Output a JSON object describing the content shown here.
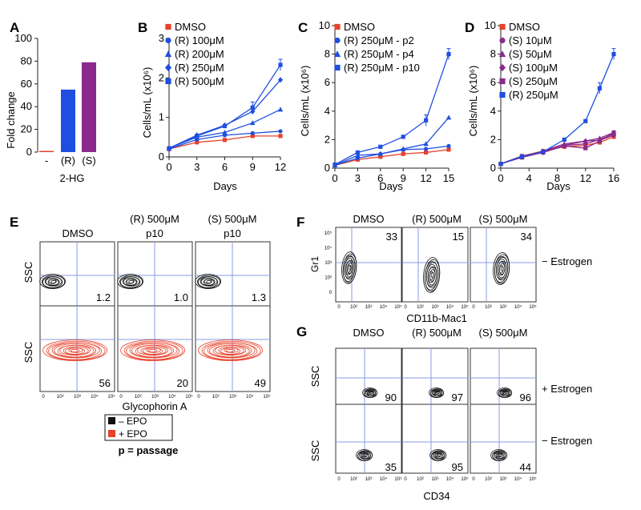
{
  "panels": {
    "A": {
      "label": "A",
      "ylabel": "Fold change",
      "xlabel": "2-HG",
      "yticks": [
        "0",
        "20",
        "40",
        "60",
        "80",
        "100"
      ],
      "categories": [
        "-",
        "(R)",
        "(S)"
      ]
    },
    "B": {
      "label": "B",
      "ylabel": "Cells/mL (x10⁶)",
      "xlabel": "Days",
      "xticks": [
        "0",
        "3",
        "6",
        "9",
        "12"
      ],
      "yticks": [
        "0",
        "1",
        "2",
        "3"
      ],
      "legend": [
        "DMSO",
        "(R) 100μM",
        "(R) 200μM",
        "(R) 250μM",
        "(R) 500μM"
      ]
    },
    "C": {
      "label": "C",
      "ylabel": "Cells/mL (x10⁶)",
      "xlabel": "Days",
      "xticks": [
        "0",
        "3",
        "6",
        "9",
        "12",
        "15"
      ],
      "yticks": [
        "0",
        "2",
        "4",
        "6",
        "8",
        "10"
      ],
      "legend": [
        "DMSO",
        "(R) 250μM - p2",
        "(R) 250μM - p4",
        "(R) 250μM - p10"
      ]
    },
    "D": {
      "label": "D",
      "ylabel": "Cells/mL (x10⁶)",
      "xlabel": "Days",
      "xticks": [
        "0",
        "4",
        "8",
        "12",
        "16"
      ],
      "yticks": [
        "0",
        "2",
        "4",
        "6",
        "8",
        "10"
      ],
      "legend": [
        "DMSO",
        "(S) 10μM",
        "(S) 50μM",
        "(S) 100μM",
        "(S) 250μM",
        "(R) 250μM"
      ]
    },
    "E": {
      "label": "E",
      "col_titles": [
        "DMSO",
        "(R) 500μM",
        "(S) 500μM"
      ],
      "col_subtitles": [
        "",
        "p10",
        "p10"
      ],
      "ylabel": "SSC",
      "xlabel": "Glycophorin A",
      "minus_epo_values": [
        "1.2",
        "1.0",
        "1.3"
      ],
      "plus_epo_values": [
        "56",
        "20",
        "49"
      ],
      "legend": [
        "– EPO",
        "+ EPO"
      ],
      "note": "p = passage"
    },
    "F": {
      "label": "F",
      "col_titles": [
        "DMSO",
        "(R) 500μM",
        "(S) 500μM"
      ],
      "ylabel": "Gr1",
      "xlabel": "CD11b-Mac1",
      "values": [
        "33",
        "15",
        "34"
      ],
      "row_label": "− Estrogen"
    },
    "G": {
      "label": "G",
      "col_titles": [
        "DMSO",
        "(R) 500μM",
        "(S) 500μM"
      ],
      "ylabel": "SSC",
      "xlabel": "CD34",
      "plus_values": [
        "90",
        "97",
        "96"
      ],
      "minus_values": [
        "35",
        "95",
        "44"
      ],
      "row_labels": [
        "+ Estrogen",
        "− Estrogen"
      ]
    }
  },
  "flow_axis_ticks": [
    "0",
    "10²",
    "10³",
    "10⁴",
    "10⁵"
  ],
  "colors": {
    "red": "#e8412a",
    "blue": "#1f4fe0",
    "purple": "#8a2a8c",
    "black": "#111111",
    "gate": "#8a9be8"
  },
  "chart_data": [
    {
      "type": "bar",
      "title": "",
      "xlabel": "2-HG",
      "ylabel": "Fold change",
      "ylim": [
        0,
        100
      ],
      "categories": [
        "-",
        "(R)",
        "(S)"
      ],
      "values": [
        1,
        55,
        79
      ],
      "colors": [
        "#e8412a",
        "#1f4fe0",
        "#8a2a8c"
      ]
    },
    {
      "type": "line",
      "xlabel": "Days",
      "ylabel": "Cells/mL (x10⁶)",
      "xlim": [
        0,
        12
      ],
      "ylim": [
        0,
        3
      ],
      "x": [
        0,
        3,
        6,
        9,
        12
      ],
      "series": [
        {
          "name": "DMSO",
          "marker": "square",
          "color": "#e8412a",
          "values": [
            0.2,
            0.37,
            0.43,
            0.53,
            0.53
          ]
        },
        {
          "name": "(R) 100μM",
          "marker": "circle",
          "color": "#1f4fe0",
          "values": [
            0.2,
            0.44,
            0.55,
            0.6,
            0.65
          ]
        },
        {
          "name": "(R) 200μM",
          "marker": "triangle",
          "color": "#1f4fe0",
          "values": [
            0.22,
            0.5,
            0.62,
            0.86,
            1.2
          ]
        },
        {
          "name": "(R) 250μM",
          "marker": "diamond",
          "color": "#1f4fe0",
          "values": [
            0.22,
            0.55,
            0.8,
            1.15,
            1.95
          ]
        },
        {
          "name": "(R) 500μM",
          "marker": "square",
          "color": "#1f4fe0",
          "values": [
            0.22,
            0.53,
            0.78,
            1.25,
            2.33
          ]
        }
      ]
    },
    {
      "type": "line",
      "xlabel": "Days",
      "ylabel": "Cells/mL (x10⁶)",
      "xlim": [
        0,
        15
      ],
      "ylim": [
        0,
        10
      ],
      "x": [
        0,
        3,
        6,
        9,
        12,
        15
      ],
      "series": [
        {
          "name": "DMSO",
          "marker": "square",
          "color": "#e8412a",
          "values": [
            0.2,
            0.6,
            0.8,
            1.0,
            1.1,
            1.3
          ]
        },
        {
          "name": "(R) 250μM - p2",
          "marker": "circle",
          "color": "#1f4fe0",
          "values": [
            0.2,
            0.7,
            1.0,
            1.3,
            1.35,
            1.55
          ]
        },
        {
          "name": "(R) 250μM - p4",
          "marker": "triangle",
          "color": "#1f4fe0",
          "values": [
            0.2,
            0.9,
            1.0,
            1.35,
            1.7,
            3.55
          ]
        },
        {
          "name": "(R) 250μM - p10",
          "marker": "square",
          "color": "#1f4fe0",
          "values": [
            0.25,
            1.1,
            1.5,
            2.2,
            3.35,
            8.0
          ]
        }
      ]
    },
    {
      "type": "line",
      "xlabel": "Days",
      "ylabel": "Cells/mL (x10⁶)",
      "xlim": [
        0,
        16
      ],
      "ylim": [
        0,
        10
      ],
      "x": [
        0,
        3,
        6,
        9,
        12,
        14,
        16
      ],
      "series": [
        {
          "name": "DMSO",
          "marker": "square",
          "color": "#e8412a",
          "values": [
            0.3,
            0.85,
            1.2,
            1.5,
            1.6,
            1.8,
            2.2
          ]
        },
        {
          "name": "(S) 10μM",
          "marker": "circle",
          "color": "#8a2a8c",
          "values": [
            0.3,
            0.85,
            1.15,
            1.6,
            1.7,
            2.0,
            2.4
          ]
        },
        {
          "name": "(S) 50μM",
          "marker": "triangle",
          "color": "#8a2a8c",
          "values": [
            0.3,
            0.8,
            1.2,
            1.7,
            1.9,
            2.1,
            2.5
          ]
        },
        {
          "name": "(S) 100μM",
          "marker": "diamond",
          "color": "#8a2a8c",
          "values": [
            0.3,
            0.8,
            1.1,
            1.6,
            1.9,
            1.95,
            2.3
          ]
        },
        {
          "name": "(S) 250μM",
          "marker": "square",
          "color": "#8a2a8c",
          "values": [
            0.3,
            0.75,
            1.1,
            1.55,
            1.4,
            1.9,
            2.5
          ]
        },
        {
          "name": "(R) 250μM",
          "marker": "square",
          "color": "#1f4fe0",
          "values": [
            0.3,
            0.8,
            1.15,
            2.0,
            3.3,
            5.6,
            8.0
          ]
        }
      ]
    },
    {
      "type": "table",
      "title": "",
      "columns": [
        "DMSO",
        "(R) 500μM",
        "(S) 500μM"
      ],
      "rows": [
        {
          "name": "– EPO",
          "values": [
            1.2,
            1.0,
            1.3
          ]
        },
        {
          "name": "+ EPO",
          "values": [
            56,
            20,
            49
          ]
        }
      ]
    },
    {
      "type": "table",
      "columns": [
        "DMSO",
        "(R) 500μM",
        "(S) 500μM"
      ],
      "rows": [
        {
          "name": "− Estrogen",
          "values": [
            33,
            15,
            34
          ]
        }
      ]
    },
    {
      "type": "table",
      "columns": [
        "DMSO",
        "(R) 500μM",
        "(S) 500μM"
      ],
      "rows": [
        {
          "name": "+ Estrogen",
          "values": [
            90,
            97,
            96
          ]
        },
        {
          "name": "− Estrogen",
          "values": [
            35,
            95,
            44
          ]
        }
      ]
    }
  ]
}
